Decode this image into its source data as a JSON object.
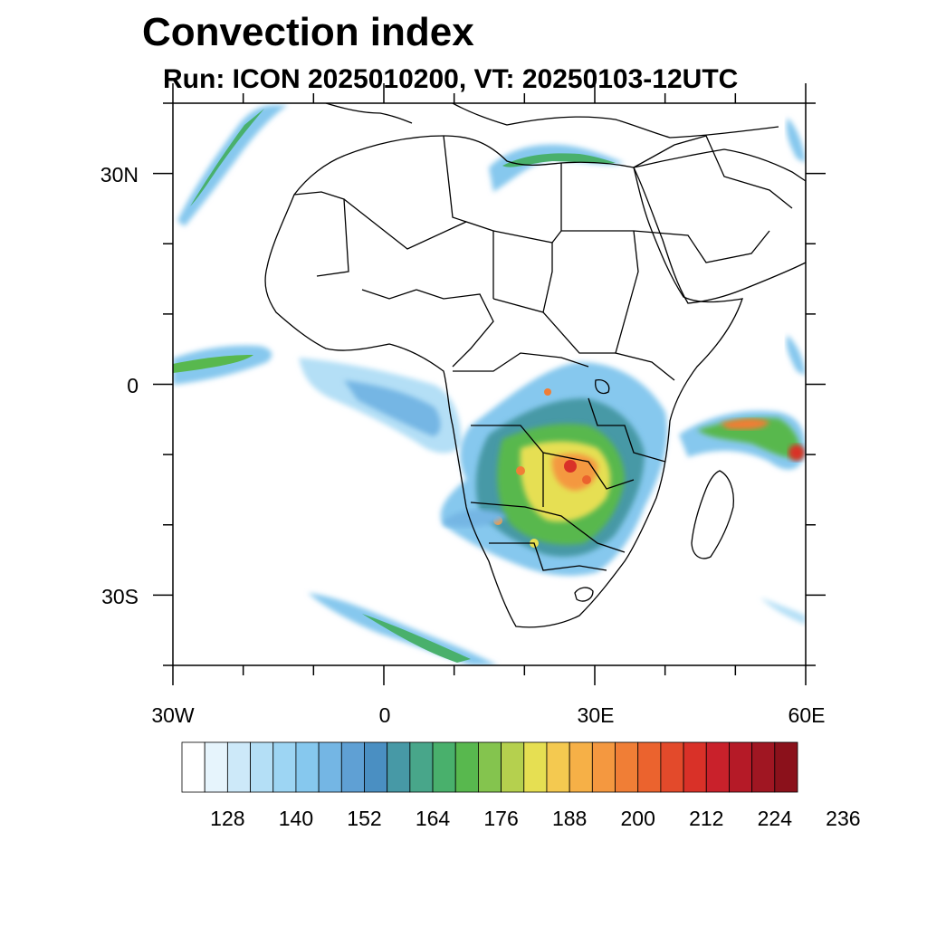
{
  "title": "Convection index",
  "subtitle": "Run: ICON 2025010200,  VT: 20250103-12UTC",
  "axes": {
    "lon_labels": [
      "30W",
      "0",
      "30E",
      "60E"
    ],
    "lat_labels": [
      "30N",
      "0",
      "30S"
    ],
    "lon_range": [
      -30,
      60
    ],
    "lat_range": [
      -40,
      40
    ]
  },
  "colorbar": {
    "labels": [
      "128",
      "140",
      "152",
      "164",
      "176",
      "188",
      "200",
      "212",
      "224",
      "236"
    ],
    "colors": [
      "#ffffff",
      "#e6f4fc",
      "#cde9f9",
      "#b4dff6",
      "#9dd5f3",
      "#86c8ee",
      "#74b6e4",
      "#5fa0d4",
      "#4a8fc2",
      "#4799a6",
      "#48a68a",
      "#49b06c",
      "#58b84e",
      "#84c44e",
      "#b5d04e",
      "#e6df52",
      "#f4c950",
      "#f6b047",
      "#f49840",
      "#f07e36",
      "#eb632e",
      "#e34a2b",
      "#d93128",
      "#c9212b",
      "#b51a27",
      "#a01622",
      "#8b111b"
    ]
  }
}
